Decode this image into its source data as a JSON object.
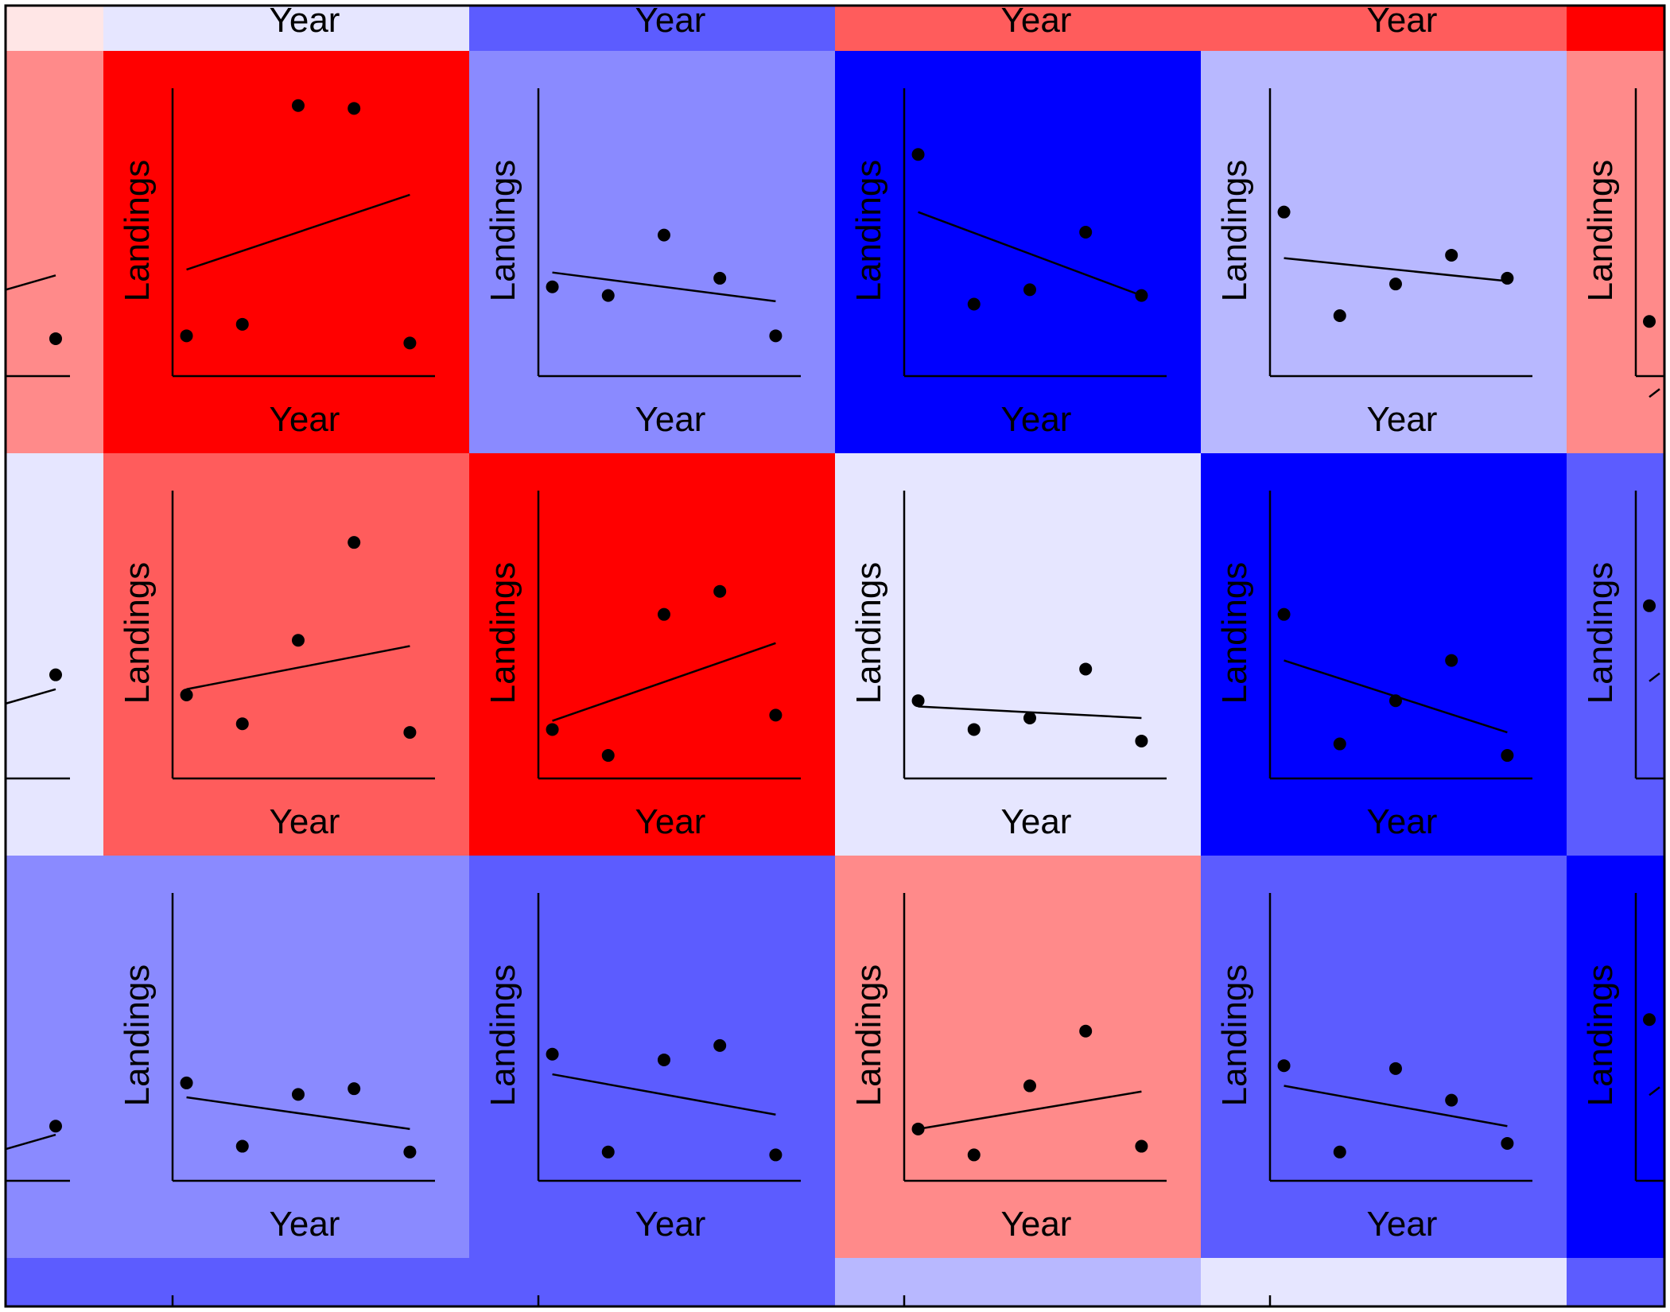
{
  "chart_data": {
    "type": "scatter",
    "title": "",
    "xlabel": "Year",
    "ylabel": "Landings",
    "legend": "none",
    "grid": false,
    "colors": {
      "red": "#ff0000",
      "red_medium": "#ff5c5c",
      "red_light": "#ff8a8a",
      "red_pale": "#ffe6e6",
      "blue": "#0000ff",
      "blue_medium": "#5c5cff",
      "blue_light": "#8a8aff",
      "blue_lighter": "#b8b8ff",
      "blue_pale": "#e6e6ff"
    },
    "panels": [
      {
        "row": 1,
        "col": 1,
        "color": "red",
        "points": [
          [
            1,
            1.4
          ],
          [
            2,
            1.8
          ],
          [
            3,
            9.4
          ],
          [
            4,
            9.3
          ],
          [
            5,
            1.15
          ]
        ],
        "trend": [
          [
            1,
            3.7
          ],
          [
            5,
            6.3
          ]
        ],
        "xlabel": "Year",
        "ylabel": "Landings"
      },
      {
        "row": 1,
        "col": 2,
        "color": "blue_light",
        "points": [
          [
            1,
            3.1
          ],
          [
            2,
            2.8
          ],
          [
            3,
            4.9
          ],
          [
            4,
            3.4
          ],
          [
            5,
            1.4
          ]
        ],
        "trend": [
          [
            1,
            3.6
          ],
          [
            5,
            2.6
          ]
        ],
        "xlabel": "Year",
        "ylabel": "Landings"
      },
      {
        "row": 1,
        "col": 3,
        "color": "blue",
        "points": [
          [
            1,
            7.7
          ],
          [
            2,
            2.5
          ],
          [
            3,
            3.0
          ],
          [
            4,
            5.0
          ],
          [
            5,
            2.8
          ]
        ],
        "trend": [
          [
            1,
            5.7
          ],
          [
            5,
            2.8
          ]
        ],
        "xlabel": "Year",
        "ylabel": "Landings"
      },
      {
        "row": 1,
        "col": 4,
        "color": "blue_lighter",
        "points": [
          [
            1,
            5.7
          ],
          [
            2,
            2.1
          ],
          [
            3,
            3.2
          ],
          [
            4,
            4.2
          ],
          [
            5,
            3.4
          ]
        ],
        "trend": [
          [
            1,
            4.1
          ],
          [
            5,
            3.3
          ]
        ],
        "xlabel": "Year",
        "ylabel": "Landings"
      },
      {
        "row": 2,
        "col": 1,
        "color": "red_medium",
        "points": [
          [
            1,
            2.9
          ],
          [
            2,
            1.9
          ],
          [
            3,
            4.8
          ],
          [
            4,
            8.2
          ],
          [
            5,
            1.6
          ]
        ],
        "trend": [
          [
            1,
            3.1
          ],
          [
            5,
            4.6
          ]
        ],
        "xlabel": "Year",
        "ylabel": "Landings"
      },
      {
        "row": 2,
        "col": 2,
        "color": "red",
        "points": [
          [
            1,
            1.7
          ],
          [
            2,
            0.8
          ],
          [
            3,
            5.7
          ],
          [
            4,
            6.5
          ],
          [
            5,
            2.2
          ]
        ],
        "trend": [
          [
            1,
            2.0
          ],
          [
            5,
            4.7
          ]
        ],
        "xlabel": "Year",
        "ylabel": "Landings"
      },
      {
        "row": 2,
        "col": 3,
        "color": "blue_pale",
        "points": [
          [
            1,
            2.7
          ],
          [
            2,
            1.7
          ],
          [
            3,
            2.1
          ],
          [
            4,
            3.8
          ],
          [
            5,
            1.3
          ]
        ],
        "trend": [
          [
            1,
            2.5
          ],
          [
            5,
            2.1
          ]
        ],
        "xlabel": "Year",
        "ylabel": "Landings"
      },
      {
        "row": 2,
        "col": 4,
        "color": "blue",
        "points": [
          [
            1,
            5.7
          ],
          [
            2,
            1.2
          ],
          [
            3,
            2.7
          ],
          [
            4,
            4.1
          ],
          [
            5,
            0.8
          ]
        ],
        "trend": [
          [
            1,
            4.1
          ],
          [
            5,
            1.6
          ]
        ],
        "xlabel": "Year",
        "ylabel": "Landings"
      },
      {
        "row": 3,
        "col": 1,
        "color": "blue_light",
        "points": [
          [
            1,
            3.4
          ],
          [
            2,
            1.2
          ],
          [
            3,
            3.0
          ],
          [
            4,
            3.2
          ],
          [
            5,
            1.0
          ]
        ],
        "trend": [
          [
            1,
            2.9
          ],
          [
            5,
            1.8
          ]
        ],
        "xlabel": "Year",
        "ylabel": "Landings"
      },
      {
        "row": 3,
        "col": 2,
        "color": "blue_medium",
        "points": [
          [
            1,
            4.4
          ],
          [
            2,
            1.0
          ],
          [
            3,
            4.2
          ],
          [
            4,
            4.7
          ],
          [
            5,
            0.9
          ]
        ],
        "trend": [
          [
            1,
            3.7
          ],
          [
            5,
            2.3
          ]
        ],
        "xlabel": "Year",
        "ylabel": "Landings"
      },
      {
        "row": 3,
        "col": 3,
        "color": "red_light",
        "points": [
          [
            1,
            1.8
          ],
          [
            2,
            0.9
          ],
          [
            3,
            3.3
          ],
          [
            4,
            5.2
          ],
          [
            5,
            1.2
          ]
        ],
        "trend": [
          [
            1,
            1.8
          ],
          [
            5,
            3.1
          ]
        ],
        "xlabel": "Year",
        "ylabel": "Landings"
      },
      {
        "row": 3,
        "col": 4,
        "color": "blue_medium",
        "points": [
          [
            1,
            4.0
          ],
          [
            2,
            1.0
          ],
          [
            3,
            3.9
          ],
          [
            4,
            2.8
          ],
          [
            5,
            1.3
          ]
        ],
        "trend": [
          [
            1,
            3.3
          ],
          [
            5,
            1.9
          ]
        ],
        "xlabel": "Year",
        "ylabel": "Landings"
      }
    ],
    "edge_cells": {
      "top_row_colors": [
        "red_pale",
        "blue_pale",
        "blue_medium",
        "red_medium",
        "red_medium",
        "red"
      ],
      "bottom_row_colors": [
        "blue_medium",
        "blue_medium",
        "blue_medium",
        "blue_lighter",
        "blue_pale",
        "blue_medium"
      ],
      "left_col_colors": [
        "red_light",
        "blue_pale",
        "blue_light"
      ],
      "right_col_colors": [
        "red_light",
        "blue_medium",
        "blue"
      ]
    },
    "xlim": [
      0.75,
      5.45
    ],
    "ylim": [
      0,
      10
    ]
  }
}
